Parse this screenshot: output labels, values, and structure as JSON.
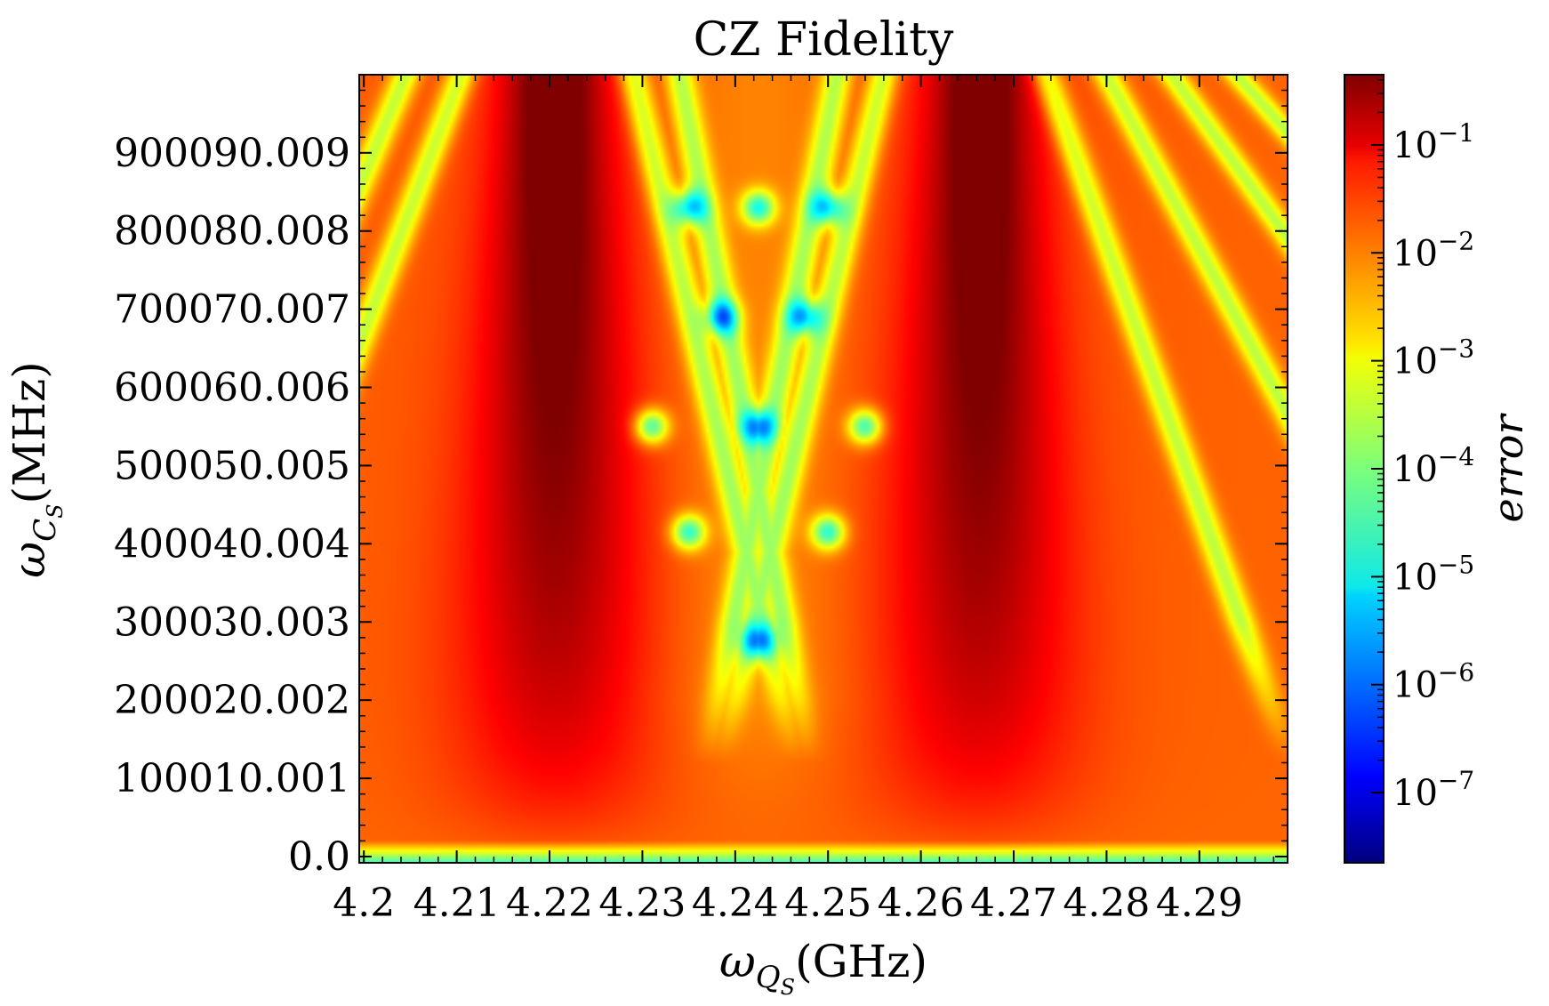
{
  "chart_data": {
    "type": "heatmap",
    "title": "CZ Fidelity",
    "xlabel": {
      "main": "ω",
      "sub": "Q",
      "subsub": "S",
      "unit": "(GHz)"
    },
    "ylabel": {
      "main": "ω",
      "sub": "C",
      "subsub": "S",
      "unit": "(MHz)"
    },
    "x_ticks": [
      {
        "value": 4.2,
        "label": "4.2"
      },
      {
        "value": 4.21,
        "label": "4.21"
      },
      {
        "value": 4.22,
        "label": "4.22"
      },
      {
        "value": 4.23,
        "label": "4.23"
      },
      {
        "value": 4.24,
        "label": "4.24"
      },
      {
        "value": 4.25,
        "label": "4.25"
      },
      {
        "value": 4.26,
        "label": "4.26"
      },
      {
        "value": 4.27,
        "label": "4.27"
      },
      {
        "value": 4.28,
        "label": "4.28"
      },
      {
        "value": 4.29,
        "label": "4.29"
      }
    ],
    "y_ticks": [
      {
        "value": 0,
        "label": "0.0"
      },
      {
        "value": 100010.001,
        "label": "100010.001"
      },
      {
        "value": 200020.002,
        "label": "200020.002"
      },
      {
        "value": 300030.003,
        "label": "300030.003"
      },
      {
        "value": 400040.004,
        "label": "400040.004"
      },
      {
        "value": 500050.005,
        "label": "500050.005"
      },
      {
        "value": 600060.006,
        "label": "600060.006"
      },
      {
        "value": 700070.007,
        "label": "700070.007"
      },
      {
        "value": 800080.008,
        "label": "800080.008"
      },
      {
        "value": 900090.009,
        "label": "900090.009"
      }
    ],
    "xlim": [
      4.1995,
      4.2995
    ],
    "ylim": [
      -8000,
      1000000
    ],
    "colorbar": {
      "label": "error",
      "scale": "log",
      "colormap": "jet",
      "ticks": [
        {
          "exp": -1,
          "label": "10",
          "sup": "−1"
        },
        {
          "exp": -2,
          "label": "10",
          "sup": "−2"
        },
        {
          "exp": -3,
          "label": "10",
          "sup": "−3"
        },
        {
          "exp": -4,
          "label": "10",
          "sup": "−4"
        },
        {
          "exp": -5,
          "label": "10",
          "sup": "−5"
        },
        {
          "exp": -6,
          "label": "10",
          "sup": "−6"
        },
        {
          "exp": -7,
          "label": "10",
          "sup": "−7"
        }
      ],
      "range_exp": [
        -7.65,
        -0.35
      ]
    },
    "features": {
      "peaks_x": [
        4.2205,
        4.2665
      ],
      "center_x": 4.2425,
      "low_error_points": [
        {
          "x": 4.2425,
          "y": 275000
        },
        {
          "x": 4.235,
          "y": 415000
        },
        {
          "x": 4.25,
          "y": 415000
        },
        {
          "x": 4.2425,
          "y": 550000
        },
        {
          "x": 4.231,
          "y": 550000
        },
        {
          "x": 4.254,
          "y": 550000
        },
        {
          "x": 4.2385,
          "y": 690000
        },
        {
          "x": 4.2475,
          "y": 690000
        },
        {
          "x": 4.235,
          "y": 830000
        },
        {
          "x": 4.2425,
          "y": 830000
        },
        {
          "x": 4.25,
          "y": 830000
        }
      ]
    }
  }
}
